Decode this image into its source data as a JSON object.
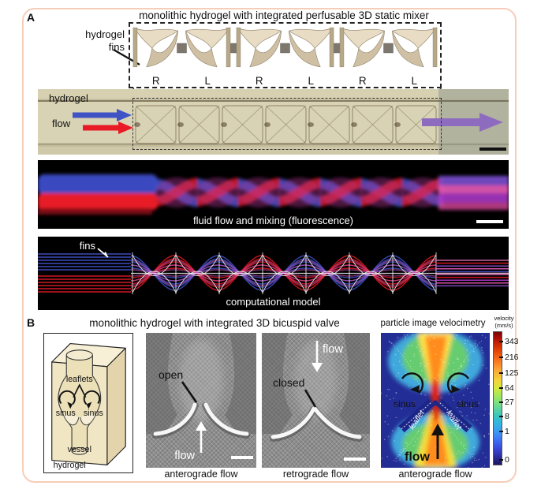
{
  "panel_a": {
    "label": "A",
    "title": "monolithic hydrogel with integrated perfusable 3D static mixer",
    "fins_annotation": {
      "line1": "hydrogel",
      "line2": "fins"
    },
    "mixer_sequence": [
      "R",
      "L",
      "R",
      "L",
      "R",
      "L"
    ],
    "photo": {
      "hydrogel_label": "hydrogel",
      "flow_label": "flow"
    },
    "fluorescence": {
      "caption": "fluid flow and mixing (fluorescence)"
    },
    "model": {
      "fins_label": "fins",
      "caption": "computational model"
    }
  },
  "panel_b": {
    "label": "B",
    "title": "monolithic hydrogel with integrated 3D bicuspid valve",
    "schematic": {
      "leaflets_label": "leaflets",
      "sinus_left_label": "sinus",
      "sinus_right_label": "sinus",
      "vessel_label": "vessel",
      "hydrogel_label": "hydrogel"
    },
    "anterograde_photo": {
      "state_label": "open",
      "flow_label": "flow",
      "caption": "anterograde flow"
    },
    "retrograde_photo": {
      "state_label": "closed",
      "flow_label": "flow",
      "caption": "retrograde flow"
    },
    "piv": {
      "title": "particle image velocimetry",
      "sinus_left_label": "sinus",
      "sinus_right_label": "sinus",
      "leaflet_left_label": "leaflet",
      "leaflet_right_label": "leaflet",
      "flow_label": "flow",
      "caption": "anterograde flow",
      "colorbar": {
        "title_line1": "velocity",
        "title_line2": "(mm/s)",
        "ticks": [
          "343",
          "216",
          "125",
          "64",
          "27",
          "8",
          "1",
          "0"
        ]
      }
    }
  },
  "colors": {
    "frame_border": "#f6cdb9",
    "mixer_fin_tan": "#d9cbb0",
    "flow_blue": "#4053c4",
    "flow_red": "#e81a26",
    "outflow_purple": "#8d6cc0",
    "piv_background": "#232d96"
  }
}
